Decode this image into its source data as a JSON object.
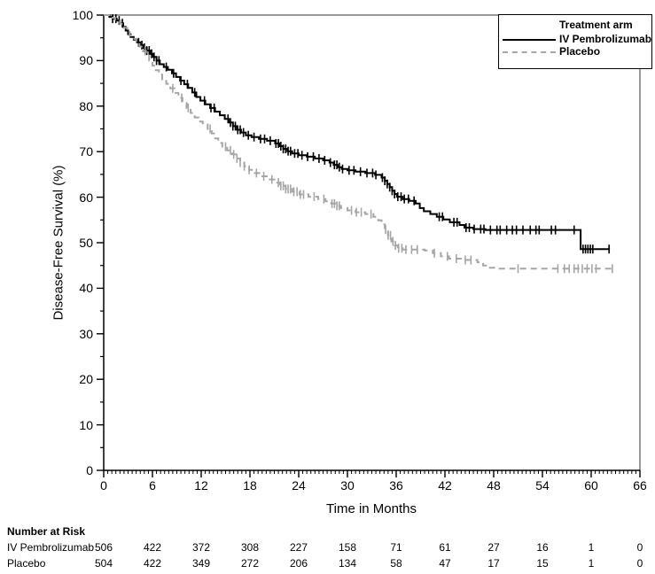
{
  "chart_data": {
    "type": "line",
    "subtype": "kaplan-meier-step",
    "title": "",
    "xlabel": "Time in Months",
    "ylabel": "Disease-Free Survival (%)",
    "xlim": [
      0,
      66
    ],
    "ylim": [
      0,
      100
    ],
    "x_major_ticks": [
      0,
      6,
      12,
      18,
      24,
      30,
      36,
      42,
      48,
      54,
      60,
      66
    ],
    "x_minor_step": 0.5,
    "y_major_ticks": [
      0,
      10,
      20,
      30,
      40,
      50,
      60,
      70,
      80,
      90,
      100
    ],
    "y_minor_step": 5,
    "grid": false,
    "frame": true,
    "legend": {
      "title": "Treatment arm",
      "position": "top-right"
    },
    "series": [
      {
        "name": "IV Pembrolizumab",
        "color": "#000000",
        "style": "solid",
        "steps": [
          [
            0,
            100
          ],
          [
            0.7,
            99.6
          ],
          [
            1.1,
            99.2
          ],
          [
            1.6,
            98.8
          ],
          [
            2.0,
            98.2
          ],
          [
            2.4,
            97.4
          ],
          [
            2.7,
            96.6
          ],
          [
            3.0,
            95.8
          ],
          [
            3.3,
            95.2
          ],
          [
            3.7,
            94.6
          ],
          [
            4.1,
            94.0
          ],
          [
            4.5,
            93.4
          ],
          [
            4.9,
            92.8
          ],
          [
            5.3,
            92.2
          ],
          [
            5.7,
            91.5
          ],
          [
            6.1,
            90.8
          ],
          [
            6.5,
            90.0
          ],
          [
            6.9,
            89.2
          ],
          [
            7.4,
            88.6
          ],
          [
            7.9,
            88.0
          ],
          [
            8.4,
            87.2
          ],
          [
            8.9,
            86.4
          ],
          [
            9.4,
            85.6
          ],
          [
            9.9,
            84.8
          ],
          [
            10.4,
            84.0
          ],
          [
            10.9,
            83.0
          ],
          [
            11.4,
            82.0
          ],
          [
            11.9,
            81.2
          ],
          [
            12.5,
            80.4
          ],
          [
            13.1,
            79.6
          ],
          [
            13.7,
            78.8
          ],
          [
            14.3,
            78.0
          ],
          [
            14.9,
            77.2
          ],
          [
            15.4,
            76.4
          ],
          [
            15.9,
            75.6
          ],
          [
            16.4,
            74.8
          ],
          [
            16.9,
            74.2
          ],
          [
            17.5,
            73.6
          ],
          [
            18.2,
            73.2
          ],
          [
            19.1,
            72.8
          ],
          [
            20.1,
            72.4
          ],
          [
            21.1,
            71.8
          ],
          [
            21.6,
            71.2
          ],
          [
            22.1,
            70.6
          ],
          [
            22.6,
            70.1
          ],
          [
            23.2,
            69.6
          ],
          [
            24.0,
            69.2
          ],
          [
            25.0,
            68.9
          ],
          [
            26.0,
            68.5
          ],
          [
            27.0,
            68.1
          ],
          [
            27.8,
            67.6
          ],
          [
            28.3,
            67.1
          ],
          [
            28.8,
            66.6
          ],
          [
            29.3,
            66.2
          ],
          [
            30.0,
            65.9
          ],
          [
            31.0,
            65.6
          ],
          [
            32.2,
            65.3
          ],
          [
            33.4,
            64.9
          ],
          [
            34.2,
            64.3
          ],
          [
            34.6,
            63.6
          ],
          [
            34.9,
            62.9
          ],
          [
            35.2,
            62.2
          ],
          [
            35.5,
            61.4
          ],
          [
            35.8,
            60.7
          ],
          [
            36.1,
            60.1
          ],
          [
            36.8,
            59.6
          ],
          [
            37.6,
            59.2
          ],
          [
            38.4,
            58.6
          ],
          [
            38.9,
            57.6
          ],
          [
            39.4,
            56.9
          ],
          [
            40.2,
            56.3
          ],
          [
            41.0,
            55.7
          ],
          [
            41.8,
            55.1
          ],
          [
            42.6,
            54.5
          ],
          [
            43.8,
            53.9
          ],
          [
            44.4,
            53.3
          ],
          [
            45.5,
            53.0
          ],
          [
            47.0,
            52.8
          ],
          [
            58.7,
            48.6
          ],
          [
            62.3,
            48.6
          ]
        ],
        "censor_times": [
          1.1,
          1.5,
          1.9,
          2.3,
          4.3,
          4.7,
          5.0,
          5.3,
          5.6,
          5.9,
          6.2,
          6.5,
          6.8,
          7.7,
          8.6,
          9.5,
          10.3,
          11.2,
          12.4,
          13.2,
          13.6,
          15.3,
          15.6,
          15.9,
          16.2,
          16.5,
          16.8,
          17.2,
          17.8,
          18.5,
          19.3,
          19.8,
          20.5,
          21.2,
          21.5,
          21.8,
          22.1,
          22.4,
          22.7,
          23.0,
          23.5,
          23.9,
          24.4,
          25.1,
          25.8,
          26.5,
          27.2,
          27.9,
          28.4,
          28.7,
          29.0,
          29.4,
          30.2,
          30.8,
          31.6,
          32.4,
          33.1,
          33.5,
          34.3,
          34.6,
          34.9,
          35.2,
          35.5,
          35.8,
          36.2,
          36.6,
          37.0,
          37.5,
          38.2,
          41.3,
          41.7,
          43.1,
          43.5,
          44.6,
          45.0,
          45.6,
          46.4,
          46.8,
          47.6,
          48.4,
          48.8,
          49.6,
          50.3,
          50.8,
          51.6,
          52.5,
          53.2,
          53.6,
          55.1,
          55.6,
          57.9,
          59.0,
          59.3,
          59.6,
          59.9,
          60.2,
          62.2
        ]
      },
      {
        "name": "Placebo",
        "color": "#a6a6a6",
        "style": "dashed",
        "steps": [
          [
            0,
            100
          ],
          [
            0.8,
            99.4
          ],
          [
            1.4,
            98.8
          ],
          [
            2.0,
            98.1
          ],
          [
            2.5,
            97.2
          ],
          [
            2.9,
            96.3
          ],
          [
            3.2,
            95.5
          ],
          [
            3.6,
            94.8
          ],
          [
            4.0,
            94.0
          ],
          [
            4.4,
            93.1
          ],
          [
            4.8,
            92.1
          ],
          [
            5.2,
            91.1
          ],
          [
            5.6,
            90.0
          ],
          [
            6.0,
            88.9
          ],
          [
            6.4,
            87.9
          ],
          [
            6.8,
            86.9
          ],
          [
            7.2,
            85.9
          ],
          [
            7.7,
            84.9
          ],
          [
            8.2,
            83.9
          ],
          [
            8.7,
            82.9
          ],
          [
            9.2,
            81.8
          ],
          [
            9.7,
            80.7
          ],
          [
            10.2,
            79.6
          ],
          [
            10.7,
            78.5
          ],
          [
            11.2,
            77.5
          ],
          [
            11.7,
            76.6
          ],
          [
            12.2,
            76.0
          ],
          [
            12.8,
            75.0
          ],
          [
            13.3,
            74.0
          ],
          [
            13.7,
            72.9
          ],
          [
            14.1,
            71.9
          ],
          [
            14.6,
            71.1
          ],
          [
            15.2,
            70.3
          ],
          [
            15.8,
            69.4
          ],
          [
            16.3,
            68.5
          ],
          [
            16.8,
            67.6
          ],
          [
            17.3,
            66.8
          ],
          [
            17.9,
            66.0
          ],
          [
            18.6,
            65.3
          ],
          [
            19.4,
            64.6
          ],
          [
            20.2,
            63.9
          ],
          [
            21.0,
            63.2
          ],
          [
            21.7,
            62.5
          ],
          [
            22.4,
            61.8
          ],
          [
            23.2,
            61.2
          ],
          [
            24.1,
            60.6
          ],
          [
            25.2,
            60.1
          ],
          [
            26.4,
            59.6
          ],
          [
            27.3,
            59.1
          ],
          [
            28.0,
            58.6
          ],
          [
            28.6,
            58.1
          ],
          [
            29.2,
            57.6
          ],
          [
            30.0,
            57.1
          ],
          [
            31.0,
            56.7
          ],
          [
            32.2,
            56.3
          ],
          [
            33.2,
            55.7
          ],
          [
            33.8,
            54.9
          ],
          [
            34.2,
            54.0
          ],
          [
            34.6,
            52.9
          ],
          [
            35.0,
            51.6
          ],
          [
            35.4,
            50.3
          ],
          [
            35.8,
            49.4
          ],
          [
            36.2,
            48.8
          ],
          [
            36.8,
            48.5
          ],
          [
            39.5,
            48.3
          ],
          [
            40.5,
            47.7
          ],
          [
            41.5,
            47.0
          ],
          [
            42.5,
            46.5
          ],
          [
            44.5,
            46.2
          ],
          [
            46.0,
            45.7
          ],
          [
            46.7,
            45.0
          ],
          [
            47.4,
            44.5
          ],
          [
            48.2,
            44.3
          ],
          [
            63.0,
            44.3
          ]
        ],
        "censor_times": [
          5.1,
          8.5,
          9.6,
          10.4,
          13.1,
          15.0,
          15.6,
          16.0,
          16.4,
          16.8,
          17.3,
          17.9,
          18.8,
          19.7,
          20.7,
          21.5,
          21.8,
          22.1,
          22.4,
          22.7,
          23.0,
          23.4,
          23.8,
          24.2,
          24.6,
          25.9,
          27.1,
          28.1,
          28.4,
          28.7,
          29.0,
          30.5,
          31.1,
          31.7,
          32.9,
          34.7,
          35.0,
          35.3,
          35.6,
          35.9,
          36.3,
          36.7,
          37.2,
          37.9,
          38.6,
          40.7,
          42.3,
          43.4,
          44.5,
          45.2,
          51.0,
          55.9,
          56.7,
          57.3,
          57.9,
          58.4,
          58.9,
          59.5,
          60.1,
          60.6,
          62.6
        ]
      }
    ]
  },
  "risk_table": {
    "header": "Number at Risk",
    "times": [
      0,
      6,
      12,
      18,
      24,
      30,
      36,
      42,
      48,
      54,
      60,
      66
    ],
    "rows": [
      {
        "label": "IV Pembrolizumab",
        "values": [
          506,
          422,
          372,
          308,
          227,
          158,
          71,
          61,
          27,
          16,
          1,
          0
        ]
      },
      {
        "label": "Placebo",
        "values": [
          504,
          422,
          349,
          272,
          206,
          134,
          58,
          47,
          17,
          15,
          1,
          0
        ]
      }
    ]
  },
  "colors": {
    "axis": "#000000",
    "frame": "#333333",
    "background": "#ffffff"
  }
}
